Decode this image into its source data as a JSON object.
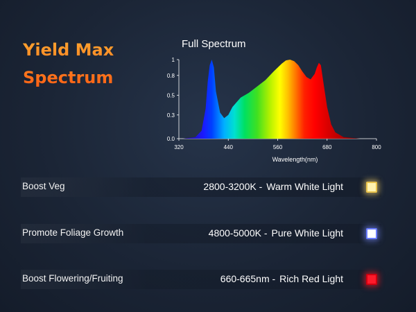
{
  "brand": {
    "line1": "Yield Max",
    "line2": "Spectrum"
  },
  "chart_data": {
    "type": "area",
    "title": "Full Spectrum",
    "xlabel": "Wavelength(nm)",
    "ylabel": "",
    "xlim": [
      320,
      800
    ],
    "ylim": [
      0,
      1
    ],
    "xticks": [
      "320",
      "440",
      "560",
      "680",
      "800"
    ],
    "yticks": [
      "0.0",
      "0.3",
      "0.5",
      "0.8",
      "1"
    ],
    "x": [
      330,
      360,
      375,
      385,
      390,
      395,
      400,
      405,
      410,
      420,
      430,
      440,
      450,
      470,
      490,
      510,
      530,
      550,
      570,
      580,
      590,
      600,
      610,
      620,
      630,
      640,
      650,
      655,
      660,
      665,
      670,
      680,
      690,
      700,
      720,
      740,
      760
    ],
    "y": [
      0.0,
      0.02,
      0.1,
      0.38,
      0.72,
      0.93,
      1.0,
      0.9,
      0.6,
      0.33,
      0.26,
      0.3,
      0.4,
      0.52,
      0.58,
      0.66,
      0.74,
      0.85,
      0.95,
      0.99,
      1.0,
      0.98,
      0.93,
      0.85,
      0.78,
      0.75,
      0.82,
      0.9,
      0.96,
      0.93,
      0.75,
      0.4,
      0.18,
      0.08,
      0.02,
      0.01,
      0.0
    ],
    "grid": false
  },
  "rows": [
    {
      "label": "Boost Veg",
      "range": "2800-3200K -",
      "light": "Warm White Light",
      "led": "warm-white"
    },
    {
      "label": "Promote Foliage Growth",
      "range": "4800-5000K -",
      "light": "Pure White Light",
      "led": "pure-white"
    },
    {
      "label": "Boost Flowering/Fruiting",
      "range": "660-665nm -",
      "light": "Rich Red Light",
      "led": "rich-red"
    }
  ],
  "colors": {
    "brand_orange": "#ff6a1a",
    "background": "#1b2536"
  }
}
